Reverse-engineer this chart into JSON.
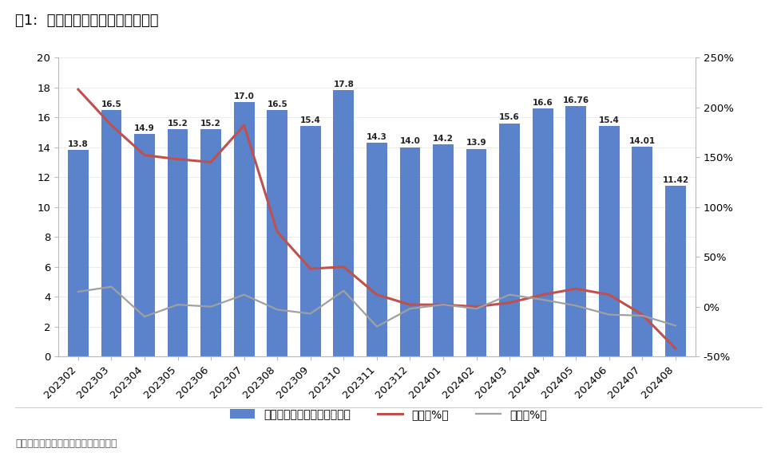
{
  "title": "图1:  美国组件进口金额（亿美元）",
  "categories": [
    "202302",
    "202303",
    "202304",
    "202305",
    "202306",
    "202307",
    "202308",
    "202309",
    "202310",
    "202311",
    "202312",
    "202401",
    "202402",
    "202403",
    "202404",
    "202405",
    "202406",
    "202407",
    "202408"
  ],
  "bar_values": [
    13.8,
    16.5,
    14.9,
    15.2,
    15.2,
    17.0,
    16.5,
    15.4,
    17.8,
    14.3,
    14.0,
    14.2,
    13.9,
    15.6,
    16.6,
    16.76,
    15.4,
    14.01,
    11.42
  ],
  "yoy_values": [
    218,
    182,
    152,
    148,
    145,
    182,
    75,
    38,
    40,
    12,
    2,
    2,
    0,
    4,
    12,
    18,
    12,
    -8,
    -42
  ],
  "mom_values": [
    15,
    20,
    -10,
    2,
    0,
    12,
    -3,
    -7,
    16,
    -20,
    -2,
    2,
    -2,
    12,
    7,
    1,
    -8,
    -9,
    -19
  ],
  "bar_color": "#4472C4",
  "yoy_color": "#C0504D",
  "mom_color": "#A0A0A0",
  "ylim_left": [
    0,
    20
  ],
  "ylim_right": [
    -50,
    250
  ],
  "yticks_left": [
    0,
    2,
    4,
    6,
    8,
    10,
    12,
    14,
    16,
    18,
    20
  ],
  "yticks_right": [
    -50,
    0,
    50,
    100,
    150,
    200,
    250
  ],
  "legend_labels": [
    "光伏组件进口金额（亿美元）",
    "同比（%）",
    "环比（%）"
  ],
  "source_text": "数据来源：美国海关，东吴证券研究所",
  "background_color": "#FFFFFF",
  "title_fontsize": 13,
  "tick_fontsize": 9.5,
  "label_fontsize": 10
}
